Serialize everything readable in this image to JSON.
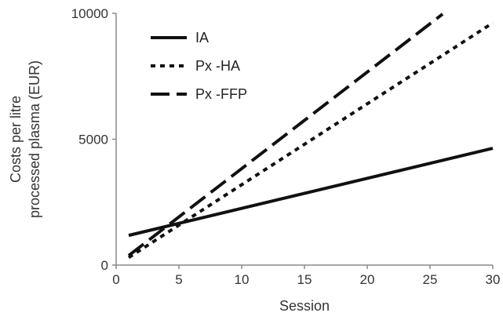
{
  "chart_data": {
    "type": "line",
    "title": "",
    "xlabel": "Session",
    "ylabel_lines": [
      "Costs per litre",
      "processed plasma (EUR)"
    ],
    "xlim": [
      0,
      30
    ],
    "ylim": [
      0,
      10000
    ],
    "x_ticks": [
      0,
      5,
      10,
      15,
      20,
      25,
      30
    ],
    "y_ticks": [
      0,
      5000,
      10000
    ],
    "grid": false,
    "legend_position": "top-left",
    "series": [
      {
        "name": "IA",
        "dash": "solid",
        "x": [
          1,
          30
        ],
        "y": [
          1180,
          4640
        ]
      },
      {
        "name": "Px -HA",
        "dash": "dotted",
        "x": [
          1,
          30
        ],
        "y": [
          300,
          9620
        ]
      },
      {
        "name": "Px -FFP",
        "dash": "long-dash",
        "x": [
          1,
          26
        ],
        "y": [
          380,
          9970
        ]
      }
    ],
    "line_color": "#111111"
  }
}
